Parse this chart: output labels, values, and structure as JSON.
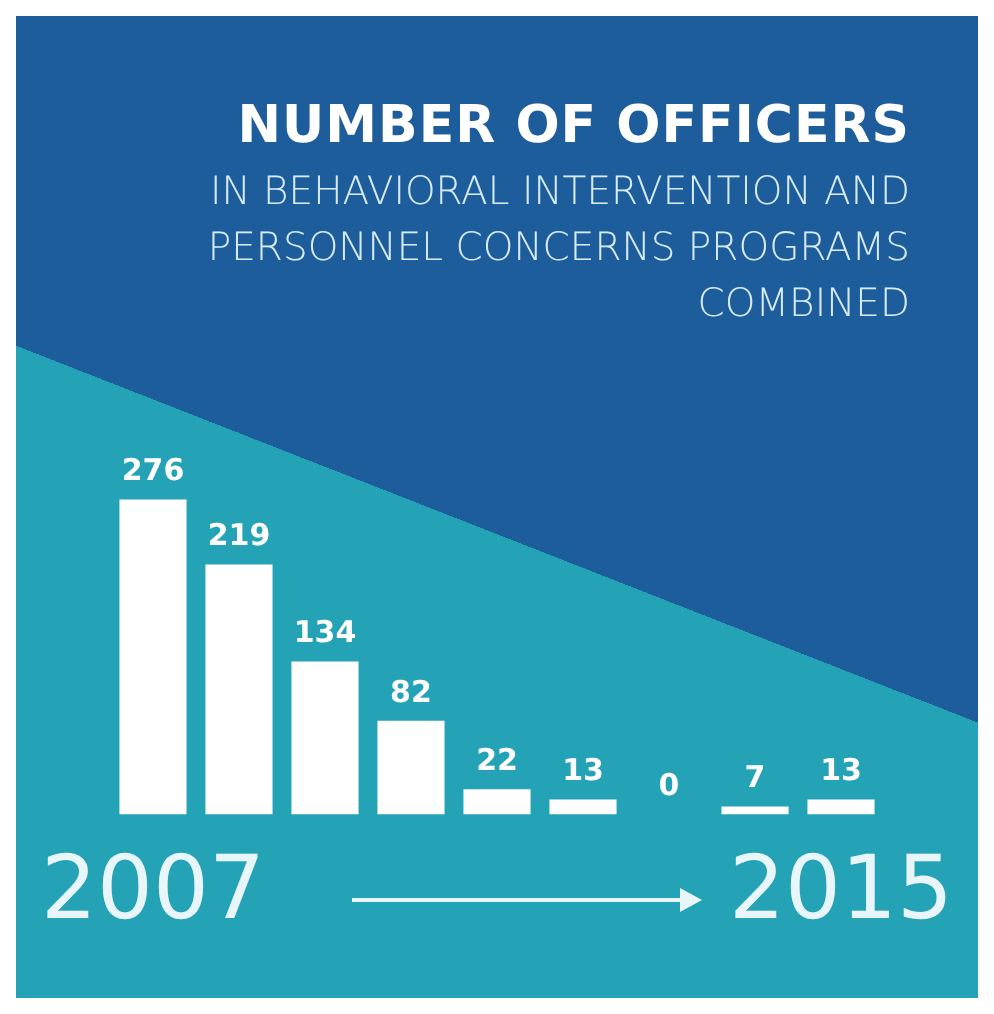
{
  "chart_data": {
    "type": "bar",
    "title": "NUMBER OF OFFICERS",
    "subtitle": "IN BEHAVIORAL INTERVENTION AND PERSONNEL CONCERNS PROGRAMS COMBINED",
    "categories": [
      "2007",
      null,
      null,
      null,
      null,
      null,
      null,
      null,
      "2015"
    ],
    "values": [
      276,
      219,
      134,
      82,
      22,
      13,
      0,
      7,
      13
    ],
    "color": "#ffffff",
    "data_labels": true,
    "tick_labels": "x",
    "grid": false,
    "legend": false
  }
}
